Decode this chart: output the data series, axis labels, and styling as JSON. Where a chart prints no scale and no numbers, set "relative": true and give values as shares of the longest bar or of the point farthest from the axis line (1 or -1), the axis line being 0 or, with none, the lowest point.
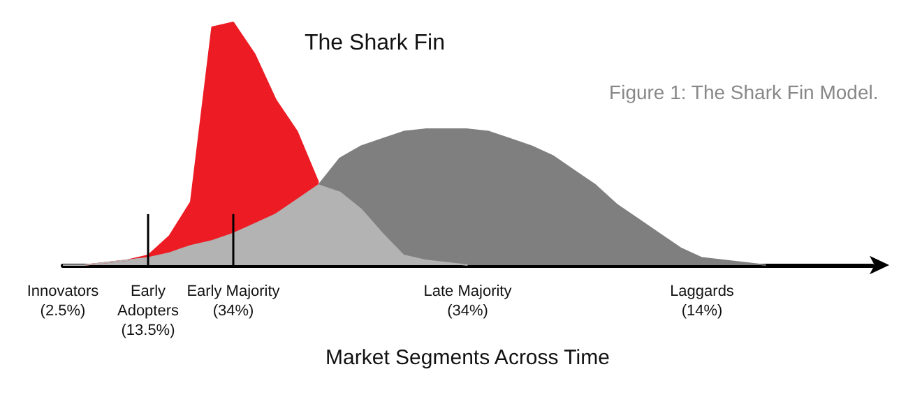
{
  "chart_data": {
    "type": "area",
    "relative": true,
    "title": "Figure 1: The Shark Fin Model.",
    "xlabel": "Market Segments Across Time",
    "categories": [
      "Innovators\n(2.5%)",
      null,
      null,
      null,
      "Early\nAdopters\n(13.5%)",
      null,
      null,
      null,
      "Early Majority\n(34%)",
      null,
      null,
      null,
      null,
      null,
      null,
      null,
      null,
      null,
      null,
      "Late Majority\n(34%)",
      null,
      null,
      null,
      null,
      null,
      null,
      null,
      null,
      null,
      null,
      "Laggards\n(14%)",
      null,
      null,
      null,
      null,
      null,
      null,
      null,
      null
    ],
    "series": [
      {
        "name": "The Shark Fin",
        "color": "#ed1c24",
        "values": [
          null,
          0,
          0.01,
          0.02,
          0.04,
          0.12,
          0.26,
          0.98,
          1,
          0.87,
          0.68,
          0.55,
          0.34,
          null,
          null,
          null,
          null,
          null,
          null,
          null,
          null,
          null,
          null,
          null,
          null,
          null,
          null,
          null,
          null,
          null,
          null,
          null,
          null,
          null,
          null,
          null,
          null,
          null,
          null
        ]
      },
      {
        "color": "#7f7f7f",
        "values": [
          null,
          null,
          null,
          null,
          null,
          null,
          null,
          null,
          null,
          null,
          null,
          null,
          0.33,
          0.44,
          0.49,
          0.52,
          0.55,
          0.56,
          0.56,
          0.56,
          0.55,
          0.52,
          0.49,
          0.45,
          0.39,
          0.33,
          0.25,
          0.19,
          0.13,
          0.07,
          0.03,
          0.02,
          0.01,
          0,
          null,
          null,
          null,
          null,
          null
        ]
      },
      {
        "color": "#b3b3b3",
        "values": [
          0,
          0,
          0.01,
          0.02,
          0.03,
          0.05,
          0.08,
          0.1,
          0.13,
          0.17,
          0.21,
          0.27,
          0.33,
          0.3,
          0.23,
          0.13,
          0.04,
          0.02,
          0.01,
          0,
          null,
          null,
          null,
          null,
          null,
          null,
          null,
          null,
          null,
          null,
          null,
          null,
          null,
          null,
          null,
          null,
          null,
          null,
          null
        ]
      }
    ],
    "ref_lines": [
      {
        "axis": "x",
        "value": "Early\nAdopters\n(13.5%)",
        "color": "#000000"
      },
      {
        "axis": "x",
        "value": "Early Majority\n(34%)",
        "color": "#000000"
      }
    ],
    "grid": false,
    "legend": false,
    "marker": "none"
  }
}
